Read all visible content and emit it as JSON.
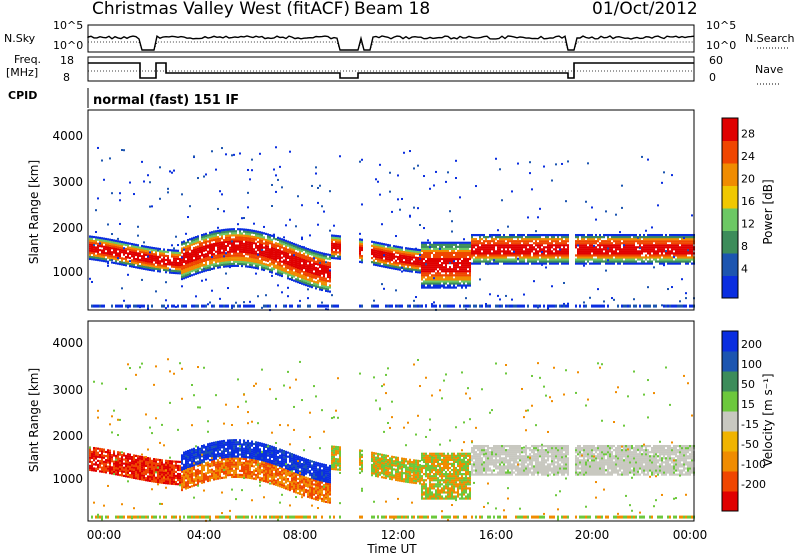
{
  "header": {
    "station": "Christmas Valley West (fitACF)",
    "beam": "Beam 18",
    "date": "01/Oct/2012"
  },
  "top_panels": {
    "nsky_label": "N.Sky",
    "nsky_ticks": [
      "10^5",
      "10^0"
    ],
    "nsearch_label": "N.Search",
    "nsearch_ticks": [
      "10^5",
      "10^0"
    ],
    "freq_label_1": "Freq.",
    "freq_label_2": "[MHz]",
    "freq_ticks": [
      "18",
      "8"
    ],
    "nave_label": "Nave",
    "nave_ticks": [
      "60",
      "0"
    ],
    "cpid_label": "CPID",
    "cpid_value": "normal (fast) 151 IF"
  },
  "chart_data": [
    {
      "type": "heatmap",
      "name": "power",
      "ylabel": "Slant Range [km]",
      "y_ticks": [
        "4000",
        "3000",
        "2000",
        "1000"
      ],
      "ylim": [
        180,
        4600
      ],
      "colorbar_label": "Power [dB]",
      "colorbar_ticks": [
        "28",
        "24",
        "20",
        "16",
        "12",
        "8",
        "4"
      ],
      "colors": [
        "#0a2ee0",
        "#1c55b0",
        "#3c8c5a",
        "#6cc864",
        "#f0c800",
        "#f08c00",
        "#f04600",
        "#e00000"
      ],
      "grid": false
    },
    {
      "type": "heatmap",
      "name": "velocity",
      "ylabel": "Slant Range [km]",
      "y_ticks": [
        "4000",
        "3000",
        "2000",
        "1000"
      ],
      "ylim": [
        180,
        4600
      ],
      "xlabel": "Time UT",
      "x_ticks": [
        "00:00",
        "04:00",
        "08:00",
        "12:00",
        "16:00",
        "20:00",
        "00:00"
      ],
      "colorbar_label": "Velocity [m s⁻¹]",
      "colorbar_ticks": [
        "200",
        "100",
        "50",
        "15",
        "-15",
        "-50",
        "-100",
        "-200"
      ],
      "colors": [
        "#e00000",
        "#f04600",
        "#f08c00",
        "#f0b400",
        "#c8c8c0",
        "#6cc83c",
        "#3c8c5a",
        "#1c55b0",
        "#0a2ee0"
      ],
      "grid": false
    }
  ]
}
